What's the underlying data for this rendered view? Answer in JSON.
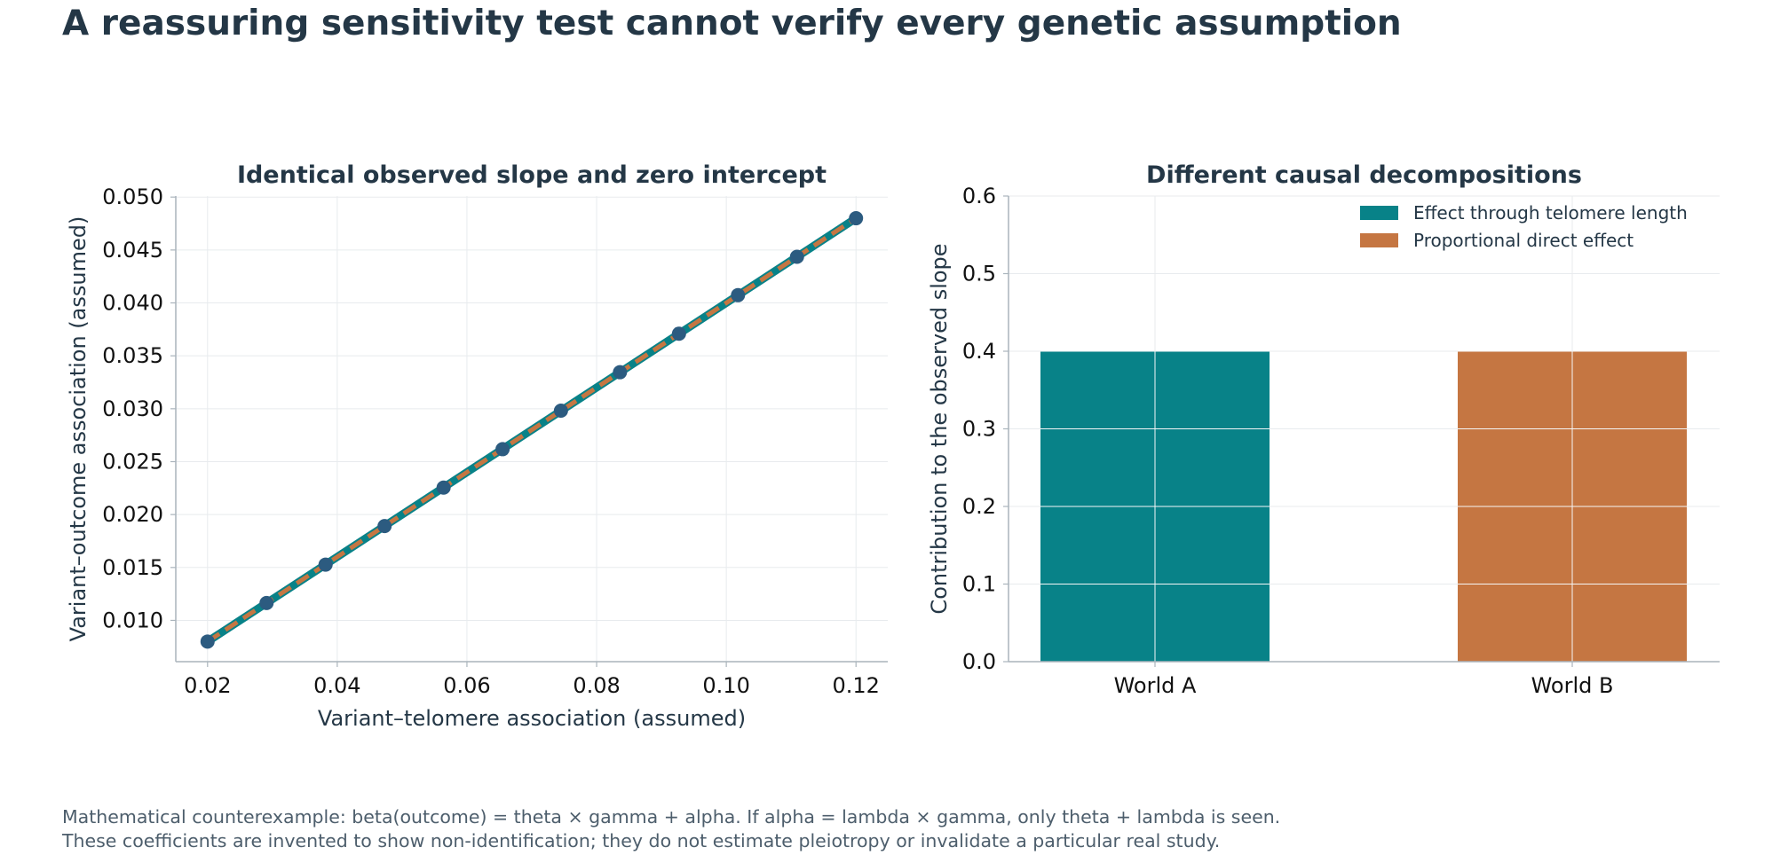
{
  "title": "A reassuring sensitivity test cannot verify every genetic assumption",
  "footnotes": [
    "Mathematical counterexample: beta(outcome) = theta × gamma + alpha. If alpha = lambda × gamma, only theta + lambda is seen.",
    "These coefficients are invented to show non-identification; they do not estimate pleiotropy or invalidate a particular real study."
  ],
  "colors": {
    "teal": "#088288",
    "orange": "#c57642",
    "navy": "#243746",
    "dot": "#2c5b80",
    "grid": "#e8ebee",
    "axis": "#aab4bc"
  },
  "chart_data": [
    {
      "type": "line",
      "title": "Identical observed slope and zero intercept",
      "xlabel": "Variant–telomere association (assumed)",
      "ylabel": "Variant–outcome association (assumed)",
      "xlim": [
        0.0151,
        0.1249
      ],
      "ylim": [
        0.0061,
        0.0501
      ],
      "xticks": [
        0.02,
        0.04,
        0.06,
        0.08,
        0.1,
        0.12
      ],
      "xtick_labels": [
        "0.02",
        "0.04",
        "0.06",
        "0.08",
        "0.10",
        "0.12"
      ],
      "yticks": [
        0.01,
        0.015,
        0.02,
        0.025,
        0.03,
        0.035,
        0.04,
        0.045,
        0.05
      ],
      "ytick_labels": [
        "0.010",
        "0.015",
        "0.020",
        "0.025",
        "0.030",
        "0.035",
        "0.040",
        "0.045",
        "0.050"
      ],
      "grid": true,
      "points": {
        "x": [
          0.02,
          0.0291,
          0.0382,
          0.0473,
          0.0564,
          0.0655,
          0.0745,
          0.0836,
          0.0927,
          0.1018,
          0.1109,
          0.12
        ],
        "y": [
          0.008,
          0.01164,
          0.01527,
          0.01891,
          0.02255,
          0.02618,
          0.02982,
          0.03345,
          0.03709,
          0.04073,
          0.04436,
          0.048
        ]
      },
      "series": [
        {
          "x": [
            0.02,
            0.12
          ],
          "y": [
            0.008,
            0.048
          ],
          "color": "#088288",
          "style": "solid"
        },
        {
          "x": [
            0.02,
            0.12
          ],
          "y": [
            0.008,
            0.048
          ],
          "color": "#c57642",
          "style": "dashed"
        }
      ]
    },
    {
      "type": "bar",
      "title": "Different causal decompositions",
      "ylabel": "Contribution to the observed slope",
      "categories": [
        "World A",
        "World B"
      ],
      "ylim": [
        0,
        0.6
      ],
      "yticks": [
        0.0,
        0.1,
        0.2,
        0.3,
        0.4,
        0.5,
        0.6
      ],
      "ytick_labels": [
        "0.0",
        "0.1",
        "0.2",
        "0.3",
        "0.4",
        "0.5",
        "0.6"
      ],
      "grid": true,
      "legend_position": "top-right",
      "series": [
        {
          "name": "Effect through telomere length",
          "values": [
            0.4,
            0.0
          ],
          "color": "#088288"
        },
        {
          "name": "Proportional direct effect",
          "values": [
            0.0,
            0.4
          ],
          "color": "#c57642"
        }
      ]
    }
  ]
}
